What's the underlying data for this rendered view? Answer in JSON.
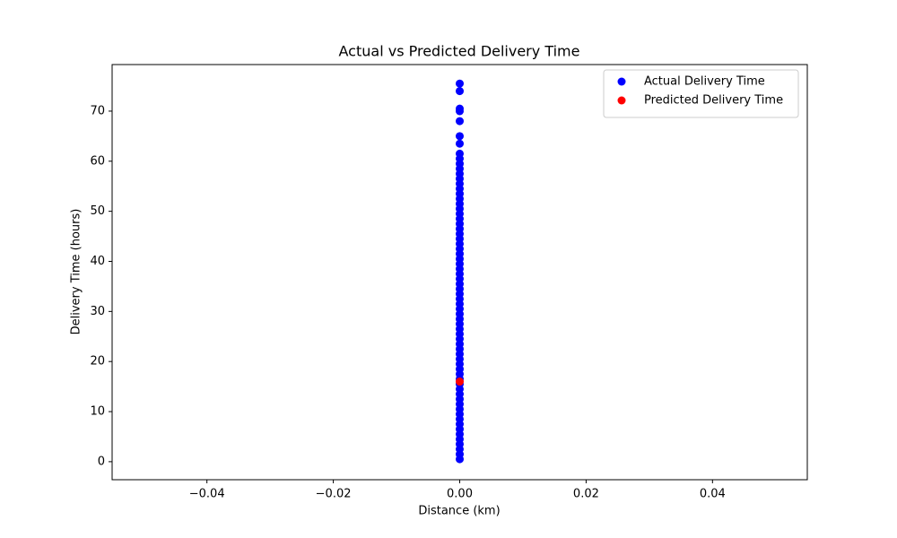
{
  "chart_data": {
    "type": "scatter",
    "title": "Actual vs Predicted Delivery Time",
    "x_label": "Distance (km)",
    "y_label": "Delivery Time (hours)",
    "xlim": [
      -0.055,
      0.055
    ],
    "ylim": [
      -3.6,
      79.3
    ],
    "xticks": [
      {
        "value": -0.04,
        "label": "−0.04"
      },
      {
        "value": -0.02,
        "label": "−0.02"
      },
      {
        "value": 0,
        "label": "0.00"
      },
      {
        "value": 0.02,
        "label": "0.02"
      },
      {
        "value": 0.04,
        "label": "0.04"
      }
    ],
    "yticks": [
      0,
      10,
      20,
      30,
      40,
      50,
      60,
      70
    ],
    "grid": false,
    "legend": "upper right",
    "series": [
      {
        "name": "Actual Delivery Time",
        "color": "blue",
        "x": [
          0,
          0,
          0,
          0,
          0,
          0,
          0,
          0,
          0,
          0,
          0,
          0,
          0,
          0,
          0,
          0,
          0,
          0,
          0,
          0,
          0,
          0,
          0,
          0,
          0,
          0,
          0,
          0,
          0,
          0,
          0,
          0,
          0,
          0,
          0,
          0,
          0,
          0,
          0,
          0,
          0,
          0,
          0,
          0,
          0,
          0,
          0,
          0,
          0,
          0,
          0,
          0,
          0,
          0,
          0,
          0,
          0,
          0,
          0,
          0,
          0,
          0,
          0,
          0,
          0,
          0,
          0,
          0,
          0
        ],
        "values": [
          0.5,
          1.5,
          2.5,
          3.5,
          4.5,
          5.5,
          6.5,
          7.5,
          8.5,
          9.5,
          10.5,
          11.5,
          12.5,
          13.5,
          14.5,
          15.5,
          16.5,
          17.5,
          18.5,
          19.5,
          20.5,
          21.5,
          22.5,
          23.5,
          24.5,
          25.5,
          26.5,
          27.5,
          28.5,
          29.5,
          30.5,
          31.5,
          32.5,
          33.5,
          34.5,
          35.5,
          36.5,
          37.5,
          38.5,
          39.5,
          40.5,
          41.5,
          42.5,
          43.5,
          44.5,
          45.5,
          46.5,
          47.5,
          48.5,
          49.5,
          50.5,
          51.5,
          52.5,
          53.5,
          54.5,
          55.5,
          56.5,
          57.5,
          58.5,
          59.5,
          60.5,
          61.5,
          63.5,
          65,
          68,
          70,
          70.5,
          74,
          75.5
        ]
      },
      {
        "name": "Predicted Delivery Time",
        "color": "red",
        "x": [
          0
        ],
        "values": [
          16
        ]
      }
    ]
  }
}
